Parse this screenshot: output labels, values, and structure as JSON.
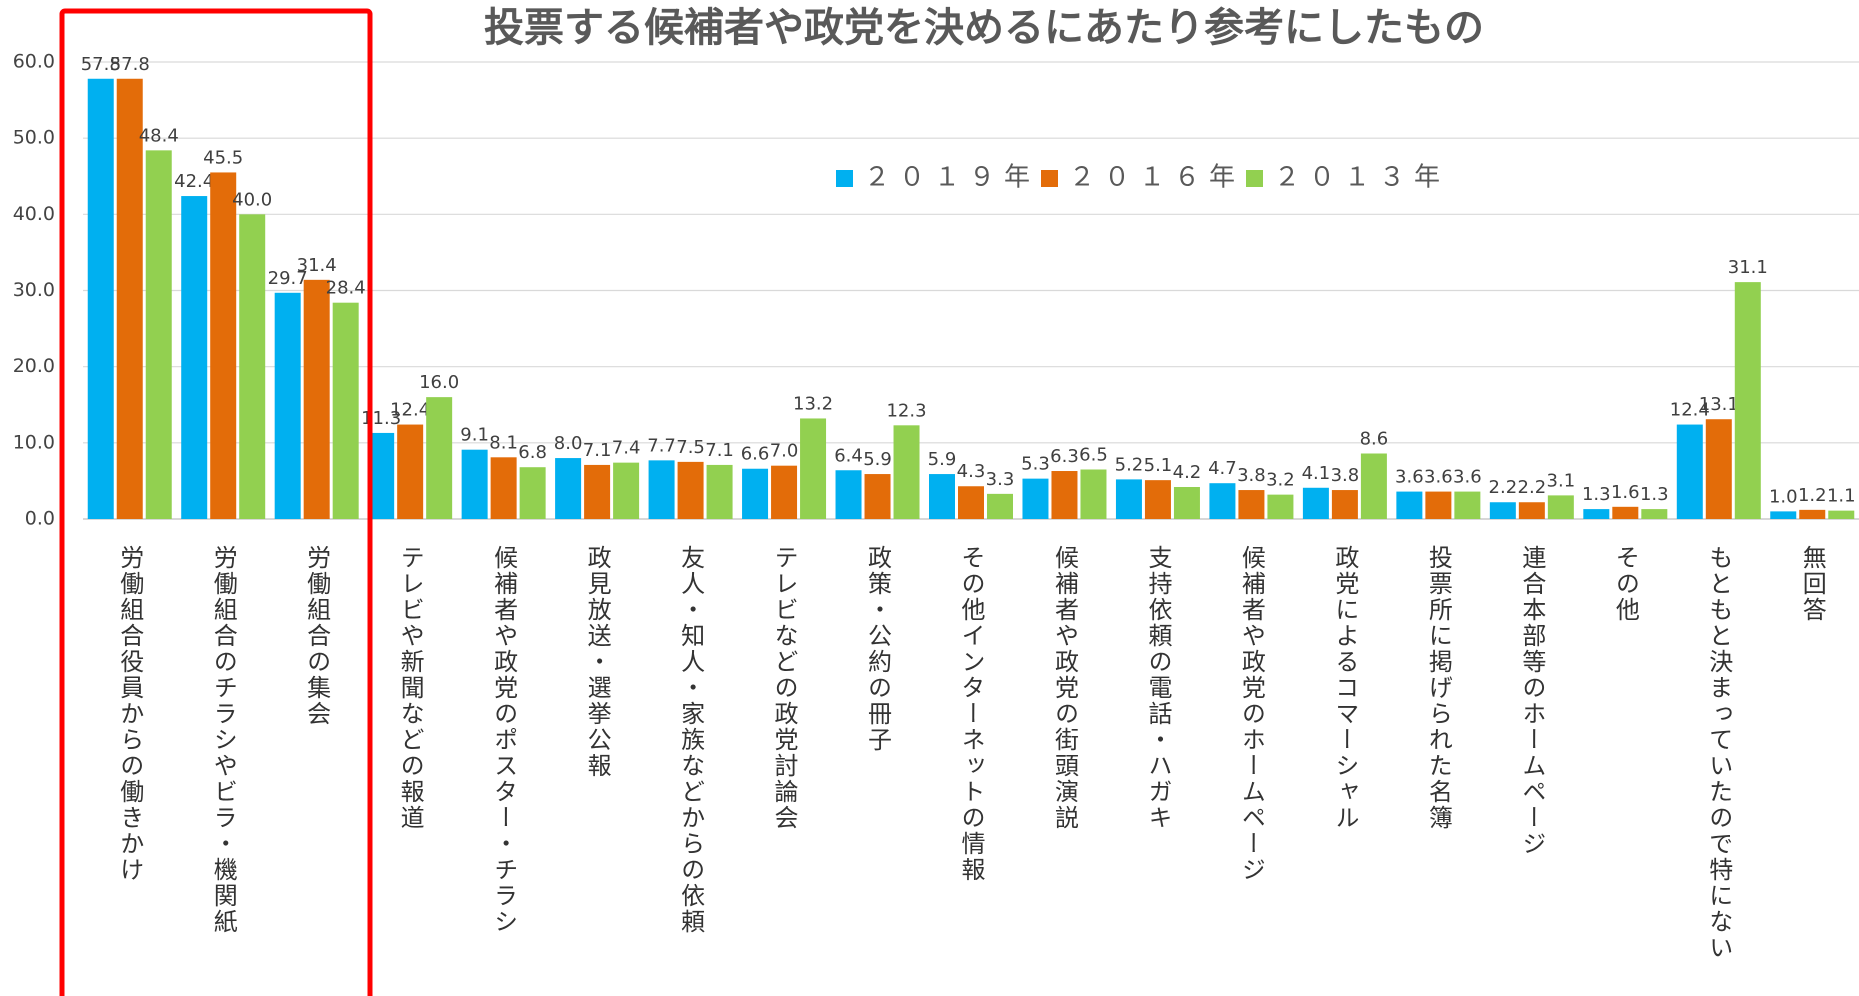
{
  "chart_data": {
    "type": "bar",
    "title": "投票する候補者や政党を決めるにあたり参考にしたもの",
    "categories": [
      "労働組合役員からの働きかけ",
      "労働組合のチラシやビラ・機関紙",
      "労働組合の集会",
      "テレビや新聞などの報道",
      "候補者や政党のポスター・チラシ",
      "政見放送・選挙公報",
      "友人・知人・家族などからの依頼",
      "テレビなどの政党討論会",
      "政策・公約の冊子",
      "その他インターネットの情報",
      "候補者や政党の街頭演説",
      "支持依頼の電話・ハガキ",
      "候補者や政党のホームページ",
      "政党によるコマーシャル",
      "投票所に掲げられた名簿",
      "連合本部等のホームページ",
      "その他",
      "もともと決まっていたので特にない",
      "無回答"
    ],
    "series": [
      {
        "name": "２０１９年",
        "color": "#00b0f0",
        "values": [
          57.8,
          42.4,
          29.7,
          11.3,
          9.1,
          8.0,
          7.7,
          6.6,
          6.4,
          5.9,
          5.3,
          5.2,
          4.7,
          4.1,
          3.6,
          2.2,
          1.3,
          12.4,
          1.0
        ],
        "value_labels": [
          "57.8",
          "42.4",
          "29.7",
          "11.3",
          "9.1",
          "8.0",
          "7.7",
          "6.6",
          "6.4",
          "5.9",
          "5.3",
          "5.2",
          "4.7",
          "4.1",
          "3.6",
          "2.2",
          "1.3",
          "12.4",
          "1.0"
        ]
      },
      {
        "name": "２０１６年",
        "color": "#e36c09",
        "values": [
          57.8,
          45.5,
          31.4,
          12.4,
          8.1,
          7.1,
          7.5,
          7.0,
          5.9,
          4.3,
          6.3,
          5.1,
          3.8,
          3.8,
          3.6,
          2.2,
          1.6,
          13.1,
          1.2
        ],
        "value_labels": [
          "57.8",
          "45.5",
          "31.4",
          "12.4",
          "8.1",
          "7.1",
          "7.5",
          "7.0",
          "5.9",
          "4.3",
          "6.3",
          "5.1",
          "3.8",
          "3.8",
          "3.6",
          "2.2",
          "1.6",
          "13.1",
          "1.2"
        ]
      },
      {
        "name": "２０１３年",
        "color": "#92d050",
        "values": [
          48.4,
          40.0,
          28.4,
          16.0,
          6.8,
          7.4,
          7.1,
          13.2,
          12.3,
          3.3,
          6.5,
          4.2,
          3.2,
          8.6,
          3.6,
          3.1,
          1.3,
          31.1,
          1.1
        ],
        "value_labels": [
          "48.4",
          "40.0",
          "28.4",
          "16.0",
          "6.8",
          "7.4",
          "7.1",
          "13.2",
          "12.3",
          "3.3",
          "6.5",
          "4.2",
          "3.2",
          "8.6",
          "3.6",
          "3.1",
          "1.3",
          "31.1",
          "1.1"
        ]
      }
    ],
    "ylim": [
      0,
      60
    ],
    "yticks": [
      {
        "value": 0,
        "label": "0.0"
      },
      {
        "value": 10,
        "label": "10.0"
      },
      {
        "value": 20,
        "label": "20.0"
      },
      {
        "value": 30,
        "label": "30.0"
      },
      {
        "value": 40,
        "label": "40.0"
      },
      {
        "value": 50,
        "label": "50.0"
      },
      {
        "value": 60,
        "label": "60.0"
      }
    ],
    "grid": true
  }
}
